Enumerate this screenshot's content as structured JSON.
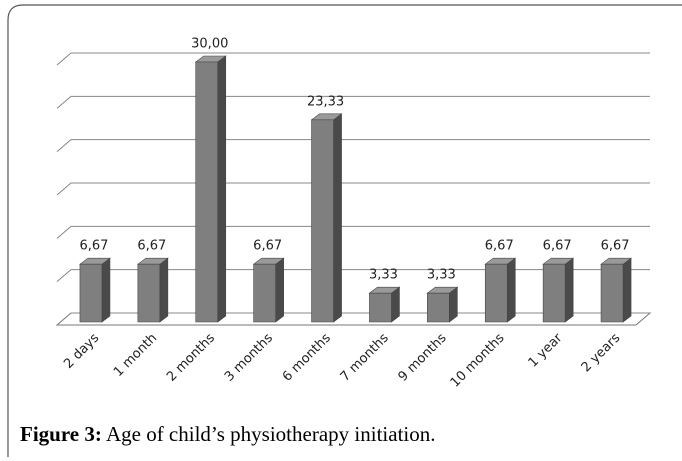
{
  "chart_data": {
    "type": "bar3d",
    "categories": [
      "2 days",
      "1 month",
      "2 months",
      "3 months",
      "6 months",
      "7 months",
      "9 months",
      "10 months",
      "1 year",
      "2 years"
    ],
    "values": [
      6.67,
      6.67,
      30.0,
      6.67,
      23.33,
      3.33,
      3.33,
      6.67,
      6.67,
      6.67
    ],
    "value_labels": [
      "6,67",
      "6,67",
      "30,00",
      "6,67",
      "23,33",
      "3,33",
      "3,33",
      "6,67",
      "6,67",
      "6,67"
    ],
    "color": "#7f7f7f",
    "ylim": [
      0,
      30
    ],
    "yticks": [
      0,
      5,
      10,
      15,
      20,
      25,
      30
    ],
    "grid": true
  },
  "figure": {
    "label": "Figure 3:",
    "caption": "Age of child’s physiotherapy initiation."
  }
}
